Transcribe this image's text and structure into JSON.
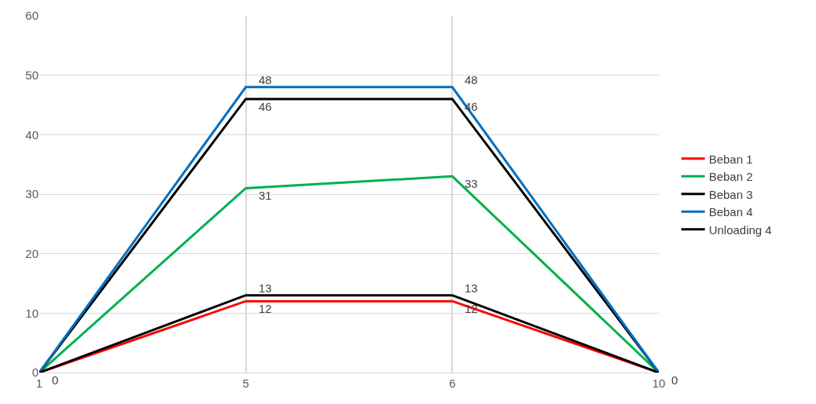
{
  "chart_data": {
    "type": "line",
    "categories": [
      "1",
      "5",
      "6",
      "10"
    ],
    "series": [
      {
        "name": "Beban 1",
        "color": "#ff0000",
        "values": [
          0,
          12,
          12,
          0
        ],
        "value_labels": [
          "0",
          "12",
          "12",
          "0"
        ]
      },
      {
        "name": "Beban 2",
        "color": "#00b050",
        "values": [
          0,
          31,
          33,
          0
        ],
        "value_labels": [
          null,
          "31",
          "33",
          null
        ]
      },
      {
        "name": "Beban 3",
        "color": "#000000",
        "values": [
          0,
          46,
          46,
          0
        ],
        "value_labels": [
          null,
          "46",
          "46",
          null
        ]
      },
      {
        "name": "Beban 4",
        "color": "#0070c0",
        "values": [
          0,
          48,
          48,
          0
        ],
        "value_labels": [
          null,
          "48",
          "48",
          null
        ]
      },
      {
        "name": "Unloading 4",
        "color": "#000000",
        "values": [
          0,
          13,
          13,
          0
        ],
        "value_labels": [
          null,
          "13",
          "13",
          null
        ]
      }
    ],
    "ylim": [
      0,
      60
    ],
    "yticks": [
      0,
      10,
      20,
      30,
      40,
      50,
      60
    ],
    "grid": true,
    "legend": "right",
    "marker": "none",
    "line_style": "solid"
  }
}
